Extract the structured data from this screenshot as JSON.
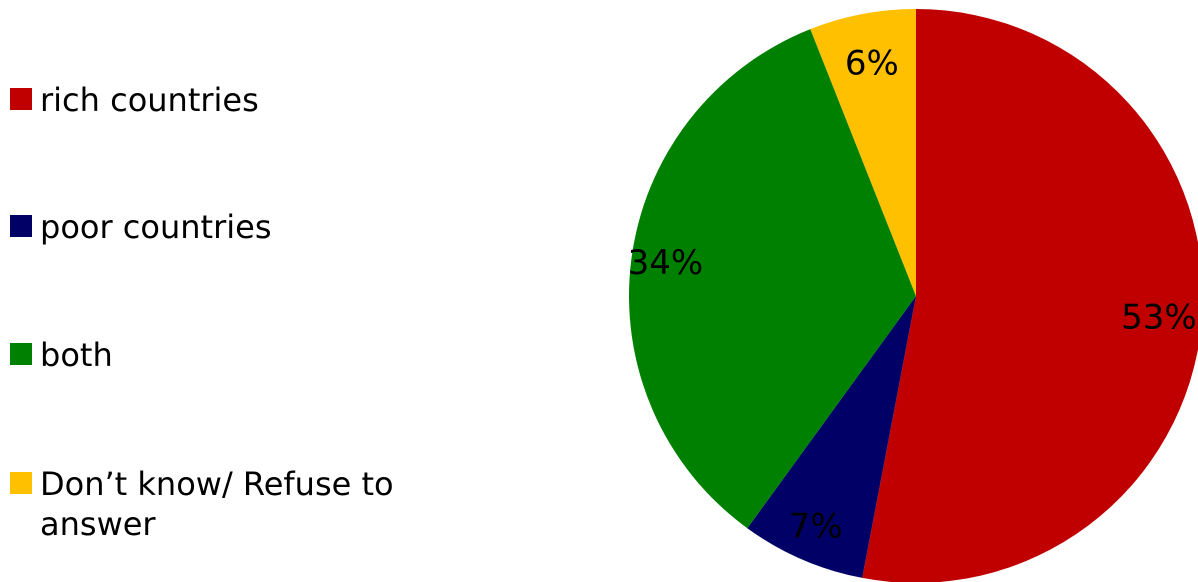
{
  "chart_data": {
    "type": "pie",
    "title": "",
    "legend_position": "left",
    "start_angle_deg": 0,
    "direction": "clockwise",
    "slices": [
      {
        "label": "rich countries",
        "value": 53,
        "value_label": "53%",
        "color": "#c00000"
      },
      {
        "label": "poor countries",
        "value": 7,
        "value_label": "7%",
        "color": "#000066"
      },
      {
        "label": "both",
        "value": 34,
        "value_label": "34%",
        "color": "#008000"
      },
      {
        "label": "Don’t know/ Refuse to answer",
        "value": 6,
        "value_label": "6%",
        "color": "#ffc000"
      }
    ]
  }
}
